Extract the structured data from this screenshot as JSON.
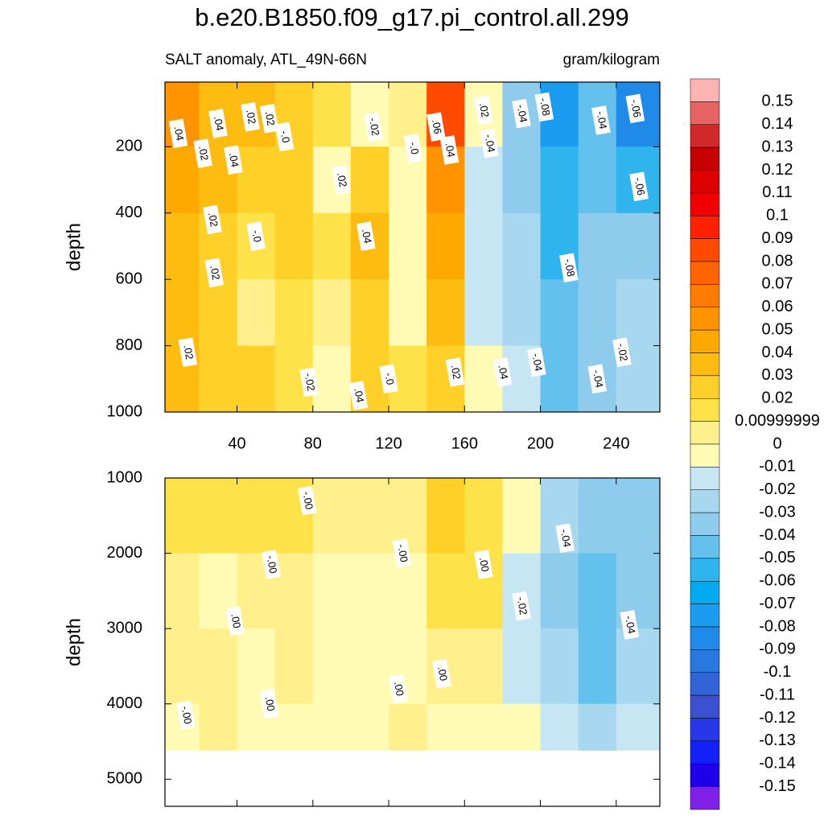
{
  "chart_data": {
    "type": "contour",
    "title": "b.e20.B1850.f09_g17.pi_control.all.299",
    "subtitle_left": "SALT anomaly, ATL_49N-66N",
    "subtitle_right": "gram/kilogram",
    "xlim": [
      2,
      263
    ],
    "xticks": [
      40,
      80,
      120,
      160,
      200,
      240
    ],
    "x_edges": [
      2,
      20,
      40,
      60,
      80,
      100,
      120,
      140,
      160,
      180,
      200,
      220,
      240,
      263
    ],
    "colorbar": {
      "levels": [
        0.15,
        0.14,
        0.13,
        0.12,
        0.11,
        0.1,
        0.09,
        0.08,
        0.07,
        0.06,
        0.05,
        0.04,
        0.03,
        0.02,
        0.00999999,
        0,
        -0.01,
        -0.02,
        -0.03,
        -0.04,
        -0.05,
        -0.06,
        -0.07,
        -0.08,
        -0.09,
        -0.1,
        -0.11,
        -0.12,
        -0.13,
        -0.14,
        -0.15
      ],
      "colors": [
        "#ffb4b4",
        "#e86464",
        "#d22a2a",
        "#c40000",
        "#dc0000",
        "#f00000",
        "#ff2000",
        "#ff4a00",
        "#ff6400",
        "#ff7c00",
        "#ff9400",
        "#ffa800",
        "#ffbc10",
        "#ffd028",
        "#ffe24a",
        "#fff08c",
        "#fffab4",
        "#c6e6f4",
        "#a8d8f0",
        "#8ecbec",
        "#64c0ec",
        "#30b4ee",
        "#00aaf0",
        "#1a9cf0",
        "#208ae8",
        "#2878e0",
        "#3264d8",
        "#3c50d0",
        "#2838e8",
        "#1420f8",
        "#2000e8",
        "#8020e8"
      ]
    },
    "panels": [
      {
        "ylabel": "depth",
        "ylim": [
          5,
          1000
        ],
        "yticks": [
          200,
          400,
          600,
          800,
          1000
        ],
        "depth_edges": [
          5,
          200,
          400,
          600,
          800,
          1000
        ],
        "values": [
          [
            0.05,
            0.03,
            0.03,
            0.02,
            0.01,
            -0.005,
            0.005,
            0.08,
            -0.01,
            -0.04,
            -0.08,
            -0.05,
            -0.09
          ],
          [
            0.04,
            0.03,
            0.02,
            0.02,
            -0.005,
            0.02,
            -0.005,
            0.05,
            -0.02,
            -0.04,
            -0.06,
            -0.05,
            -0.06
          ],
          [
            0.03,
            0.02,
            0.01,
            0.02,
            0.01,
            0.03,
            -0.005,
            0.04,
            -0.02,
            -0.03,
            -0.06,
            -0.04,
            -0.04
          ],
          [
            0.03,
            0.02,
            0.005,
            0.015,
            0.005,
            0.02,
            -0.005,
            0.03,
            -0.02,
            -0.03,
            -0.05,
            -0.04,
            -0.03
          ],
          [
            0.03,
            0.02,
            0.02,
            0.01,
            -0.005,
            0.02,
            0.015,
            0.025,
            -0.005,
            -0.02,
            -0.05,
            -0.04,
            -0.03
          ]
        ],
        "contour_labels": [
          {
            "x": 9,
            "depth": 160,
            "label": ".04"
          },
          {
            "x": 30,
            "depth": 130,
            "label": ".04"
          },
          {
            "x": 47,
            "depth": 110,
            "label": ".02"
          },
          {
            "x": 22,
            "depth": 220,
            "label": ".02"
          },
          {
            "x": 38,
            "depth": 240,
            "label": ".04"
          },
          {
            "x": 57,
            "depth": 115,
            "label": ".02"
          },
          {
            "x": 65,
            "depth": 170,
            "label": "-.0"
          },
          {
            "x": 27,
            "depth": 420,
            "label": ".02"
          },
          {
            "x": 28,
            "depth": 580,
            "label": ".02"
          },
          {
            "x": 50,
            "depth": 470,
            "label": "-.0"
          },
          {
            "x": 95,
            "depth": 300,
            "label": ".02"
          },
          {
            "x": 108,
            "depth": 470,
            "label": ".04"
          },
          {
            "x": 112,
            "depth": 140,
            "label": "-.02"
          },
          {
            "x": 133,
            "depth": 205,
            "label": "-.0"
          },
          {
            "x": 152,
            "depth": 210,
            "label": ".04"
          },
          {
            "x": 145,
            "depth": 140,
            "label": ".06"
          },
          {
            "x": 170,
            "depth": 90,
            "label": ".02"
          },
          {
            "x": 173,
            "depth": 190,
            "label": "-.04"
          },
          {
            "x": 190,
            "depth": 100,
            "label": "-.04"
          },
          {
            "x": 202,
            "depth": 80,
            "label": "-.08"
          },
          {
            "x": 232,
            "depth": 120,
            "label": "-.04"
          },
          {
            "x": 250,
            "depth": 85,
            "label": "-.06"
          },
          {
            "x": 252,
            "depth": 320,
            "label": "-.06"
          },
          {
            "x": 215,
            "depth": 565,
            "label": "-.08"
          },
          {
            "x": 230,
            "depth": 900,
            "label": "-.04"
          },
          {
            "x": 243,
            "depth": 820,
            "label": "-.02"
          },
          {
            "x": 14,
            "depth": 820,
            "label": ".02"
          },
          {
            "x": 155,
            "depth": 880,
            "label": ".02"
          },
          {
            "x": 78,
            "depth": 910,
            "label": "-.02"
          },
          {
            "x": 104,
            "depth": 950,
            "label": ".04"
          },
          {
            "x": 120,
            "depth": 900,
            "label": "-.0"
          },
          {
            "x": 180,
            "depth": 880,
            "label": ".04"
          },
          {
            "x": 198,
            "depth": 850,
            "label": "-.04"
          }
        ]
      },
      {
        "ylabel": "depth",
        "ylim": [
          1000,
          5360
        ],
        "yticks": [
          1000,
          2000,
          3000,
          4000,
          5000
        ],
        "depth_edges": [
          1000,
          2000,
          3000,
          4000,
          4615
        ],
        "values": [
          [
            0.015,
            0.01,
            0.015,
            0.01,
            0.005,
            0.005,
            0.005,
            0.02,
            0.015,
            -0.01,
            -0.03,
            -0.04,
            -0.04
          ],
          [
            0.005,
            -0.005,
            0.005,
            0.005,
            -0.005,
            -0.005,
            -0.005,
            0.01,
            0.01,
            -0.02,
            -0.04,
            -0.05,
            -0.04
          ],
          [
            0.005,
            0.005,
            -0.005,
            0.005,
            -0.005,
            -0.005,
            -0.005,
            0.005,
            0.005,
            -0.02,
            -0.03,
            -0.05,
            -0.03
          ],
          [
            -0.005,
            0.005,
            -0.005,
            -0.005,
            -0.005,
            -0.005,
            0.005,
            -0.005,
            -0.005,
            -0.005,
            -0.02,
            -0.03,
            -0.02
          ]
        ],
        "contour_labels": [
          {
            "x": 13,
            "depth": 4150,
            "label": "-.00"
          },
          {
            "x": 39,
            "depth": 2900,
            "label": ".00"
          },
          {
            "x": 58,
            "depth": 2150,
            "label": "-.00"
          },
          {
            "x": 57,
            "depth": 4000,
            "label": ".00"
          },
          {
            "x": 77,
            "depth": 1300,
            "label": "-.00"
          },
          {
            "x": 127,
            "depth": 2000,
            "label": "-.00"
          },
          {
            "x": 125,
            "depth": 3800,
            "label": ".00"
          },
          {
            "x": 148,
            "depth": 3600,
            "label": ".00"
          },
          {
            "x": 170,
            "depth": 2150,
            "label": ".00"
          },
          {
            "x": 190,
            "depth": 2700,
            "label": "-.02"
          },
          {
            "x": 213,
            "depth": 1800,
            "label": "-.04"
          },
          {
            "x": 247,
            "depth": 2950,
            "label": "-.04"
          }
        ]
      }
    ]
  }
}
